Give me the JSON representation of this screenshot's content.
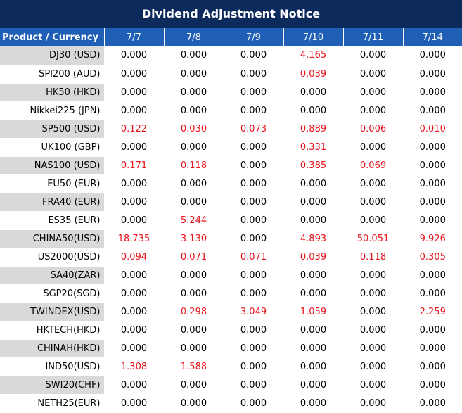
{
  "title": "Dividend Adjustment Notice",
  "header": {
    "product_label": "Product / Currency",
    "dates": [
      "7/7",
      "7/8",
      "7/9",
      "7/10",
      "7/11",
      "7/14"
    ]
  },
  "colors": {
    "title_bg": "#0c2a5c",
    "header_bg": "#1f5fb5",
    "highlight": "#e8141c",
    "stripe": "#d9d9d9"
  },
  "rows": [
    {
      "product": "DJ30 (USD)",
      "values": [
        "0.000",
        "0.000",
        "0.000",
        "4.165",
        "0.000",
        "0.000"
      ]
    },
    {
      "product": "SPI200 (AUD)",
      "values": [
        "0.000",
        "0.000",
        "0.000",
        "0.039",
        "0.000",
        "0.000"
      ]
    },
    {
      "product": "HK50 (HKD)",
      "values": [
        "0.000",
        "0.000",
        "0.000",
        "0.000",
        "0.000",
        "0.000"
      ]
    },
    {
      "product": "Nikkei225 (JPN)",
      "values": [
        "0.000",
        "0.000",
        "0.000",
        "0.000",
        "0.000",
        "0.000"
      ]
    },
    {
      "product": "SP500 (USD)",
      "values": [
        "0.122",
        "0.030",
        "0.073",
        "0.889",
        "0.006",
        "0.010"
      ]
    },
    {
      "product": "UK100 (GBP)",
      "values": [
        "0.000",
        "0.000",
        "0.000",
        "0.331",
        "0.000",
        "0.000"
      ]
    },
    {
      "product": "NAS100 (USD)",
      "values": [
        "0.171",
        "0.118",
        "0.000",
        "0.385",
        "0.069",
        "0.000"
      ]
    },
    {
      "product": "EU50 (EUR)",
      "values": [
        "0.000",
        "0.000",
        "0.000",
        "0.000",
        "0.000",
        "0.000"
      ]
    },
    {
      "product": "FRA40 (EUR)",
      "values": [
        "0.000",
        "0.000",
        "0.000",
        "0.000",
        "0.000",
        "0.000"
      ]
    },
    {
      "product": "ES35 (EUR)",
      "values": [
        "0.000",
        "5.244",
        "0.000",
        "0.000",
        "0.000",
        "0.000"
      ]
    },
    {
      "product": "CHINA50(USD)",
      "values": [
        "18.735",
        "3.130",
        "0.000",
        "4.893",
        "50.051",
        "9.926"
      ]
    },
    {
      "product": "US2000(USD)",
      "values": [
        "0.094",
        "0.071",
        "0.071",
        "0.039",
        "0.118",
        "0.305"
      ]
    },
    {
      "product": "SA40(ZAR)",
      "values": [
        "0.000",
        "0.000",
        "0.000",
        "0.000",
        "0.000",
        "0.000"
      ]
    },
    {
      "product": "SGP20(SGD)",
      "values": [
        "0.000",
        "0.000",
        "0.000",
        "0.000",
        "0.000",
        "0.000"
      ]
    },
    {
      "product": "TWINDEX(USD)",
      "values": [
        "0.000",
        "0.298",
        "3.049",
        "1.059",
        "0.000",
        "2.259"
      ]
    },
    {
      "product": "HKTECH(HKD)",
      "values": [
        "0.000",
        "0.000",
        "0.000",
        "0.000",
        "0.000",
        "0.000"
      ]
    },
    {
      "product": "CHINAH(HKD)",
      "values": [
        "0.000",
        "0.000",
        "0.000",
        "0.000",
        "0.000",
        "0.000"
      ]
    },
    {
      "product": "IND50(USD)",
      "values": [
        "1.308",
        "1.588",
        "0.000",
        "0.000",
        "0.000",
        "0.000"
      ]
    },
    {
      "product": "SWI20(CHF)",
      "values": [
        "0.000",
        "0.000",
        "0.000",
        "0.000",
        "0.000",
        "0.000"
      ]
    },
    {
      "product": "NETH25(EUR)",
      "values": [
        "0.000",
        "0.000",
        "0.000",
        "0.000",
        "0.000",
        "0.000"
      ]
    }
  ]
}
